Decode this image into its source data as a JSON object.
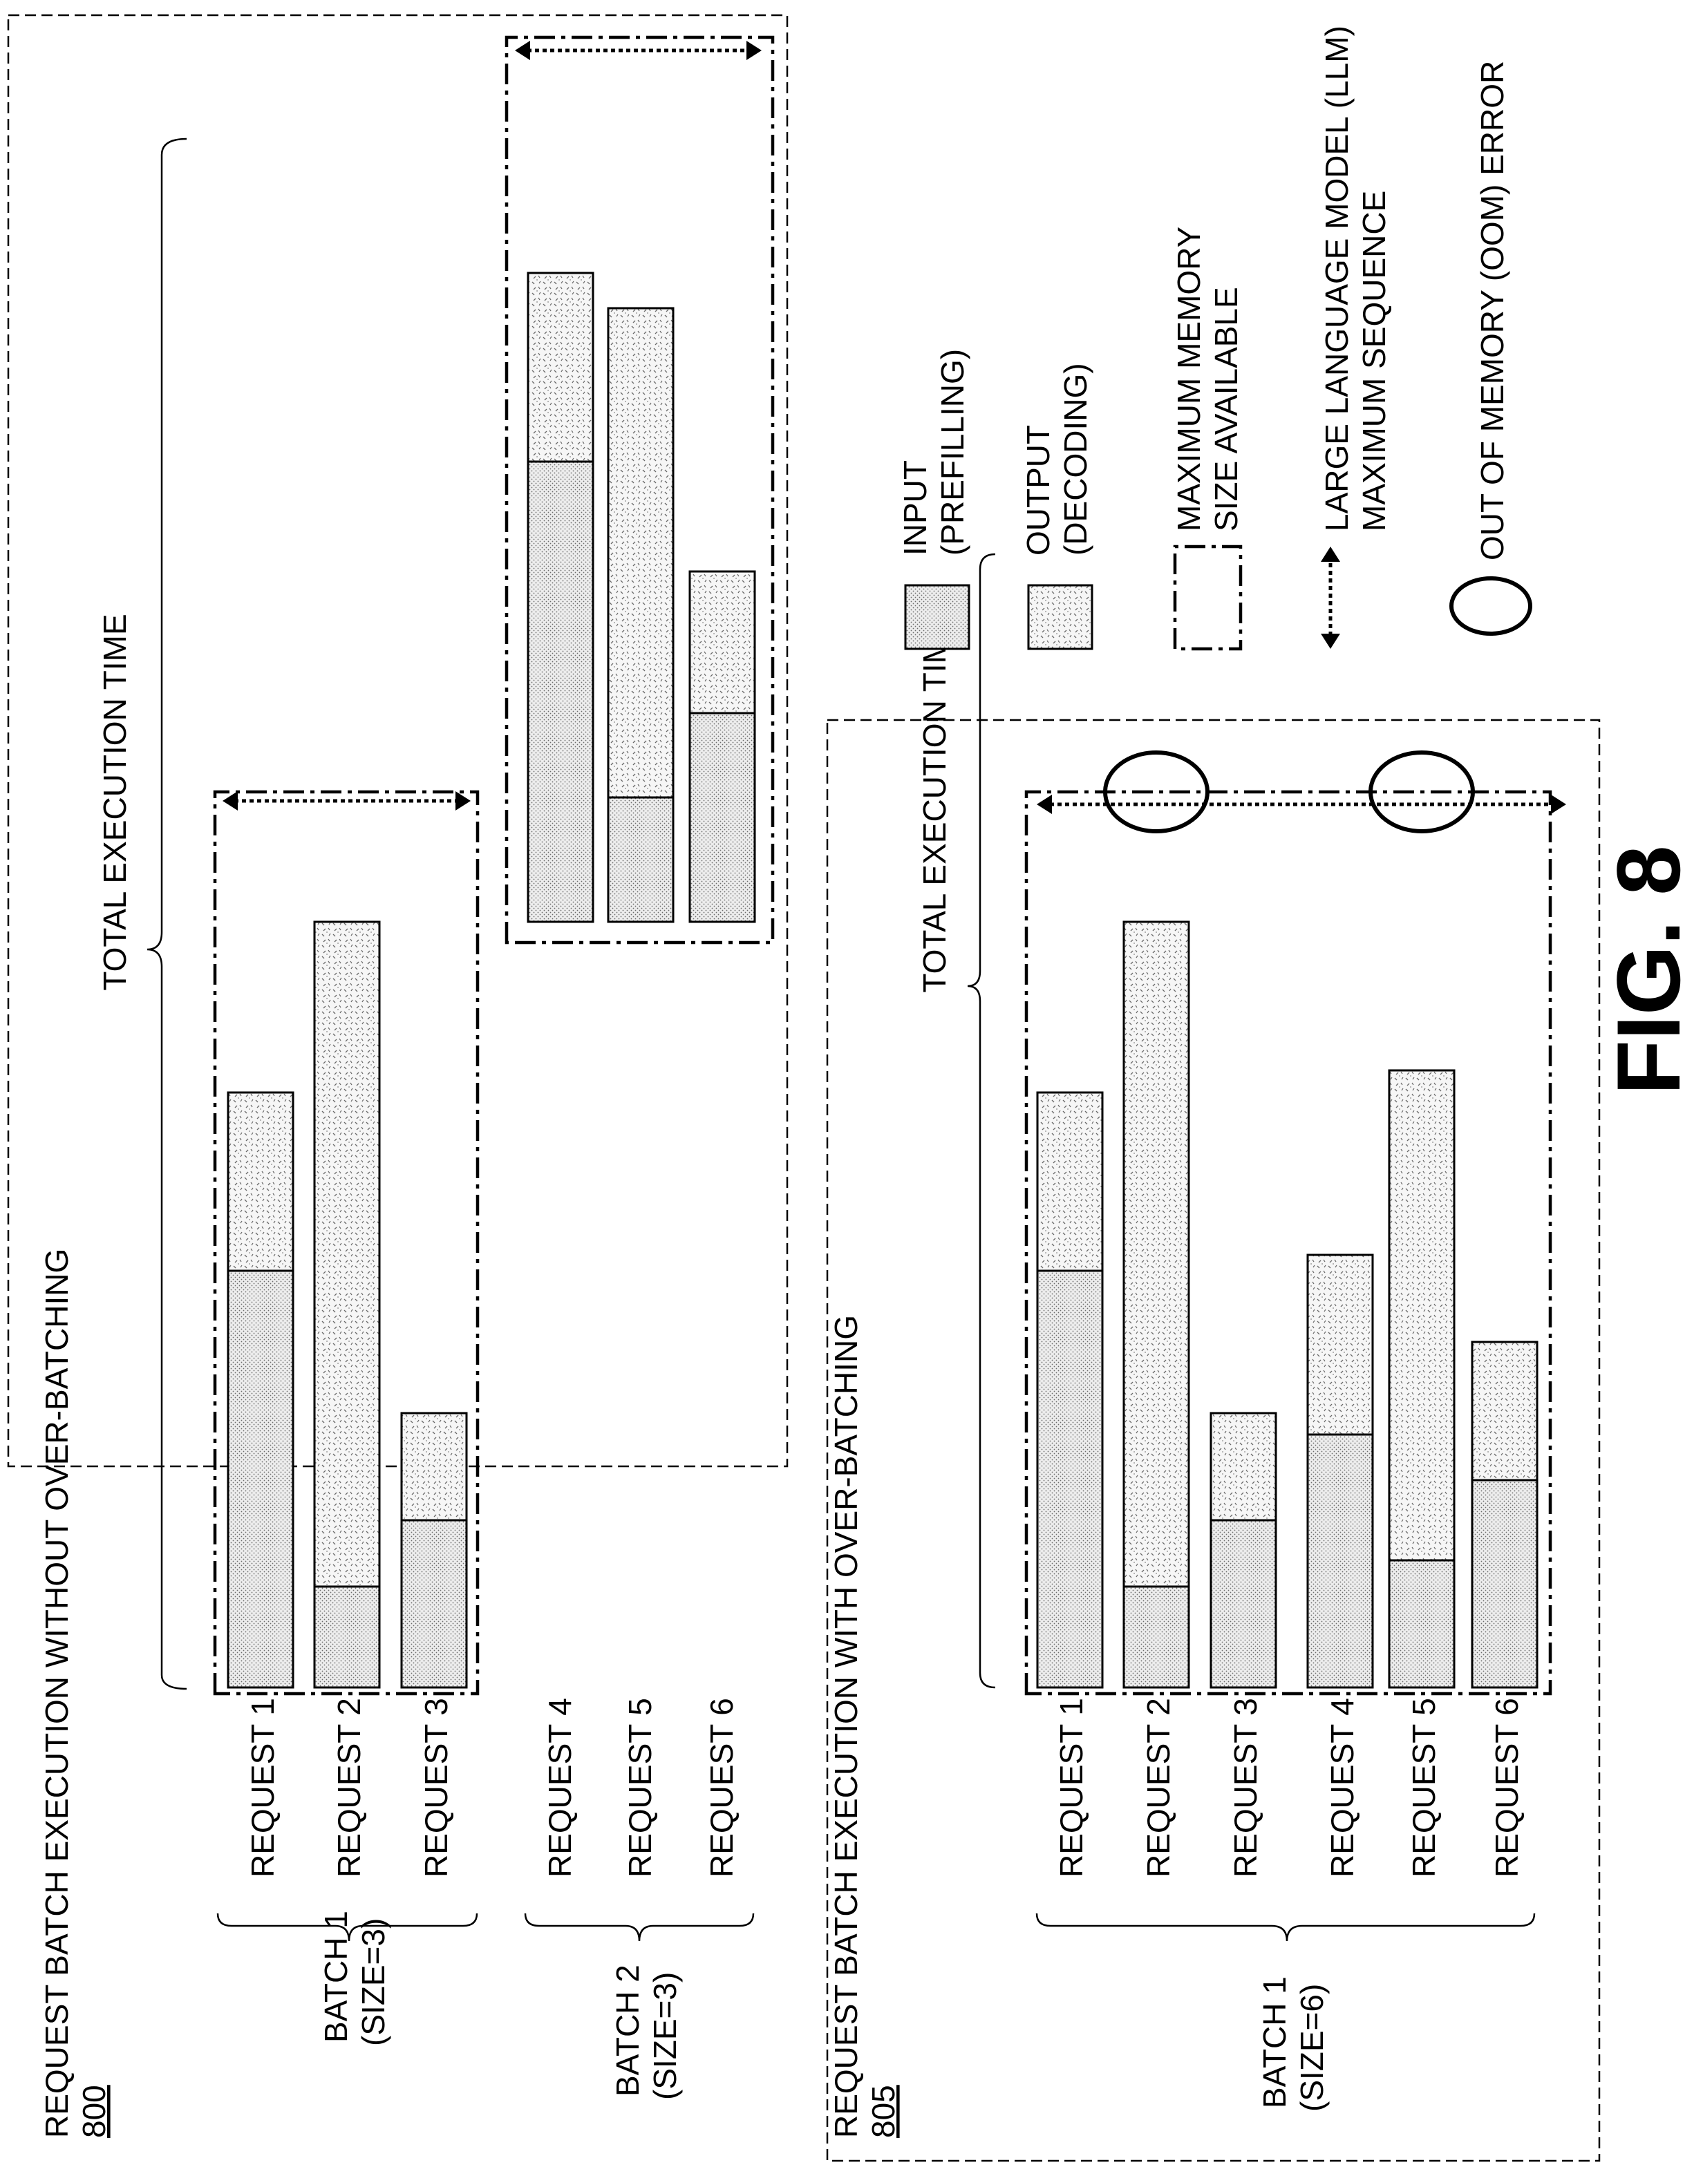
{
  "figure_label": "FIG. 8",
  "panel_top": {
    "title": "REQUEST BATCH EXECUTION WITHOUT OVER-BATCHING",
    "ref": "800",
    "total_label": "TOTAL EXECUTION TIME",
    "batches": [
      {
        "label_line1": "BATCH 1",
        "label_line2": "(SIZE=3)",
        "requests": [
          "REQUEST 1",
          "REQUEST 2",
          "REQUEST 3"
        ]
      },
      {
        "label_line1": "BATCH 2",
        "label_line2": "(SIZE=3)",
        "requests": [
          "REQUEST 4",
          "REQUEST 5",
          "REQUEST 6"
        ]
      }
    ]
  },
  "panel_bottom": {
    "title": "REQUEST BATCH EXECUTION WITH OVER-BATCHING",
    "ref": "805",
    "total_label": "TOTAL EXECUTION TIME",
    "batches": [
      {
        "label_line1": "BATCH 1",
        "label_line2": "(SIZE=6)",
        "requests": [
          "REQUEST 1",
          "REQUEST 2",
          "REQUEST 3",
          "REQUEST 4",
          "REQUEST 5",
          "REQUEST 6"
        ]
      }
    ]
  },
  "legend": {
    "input_line1": "INPUT",
    "input_line2": "(PREFILLING)",
    "output_line1": "OUTPUT",
    "output_line2": "(DECODING)",
    "memory_line1": "MAXIMUM MEMORY",
    "memory_line2": "SIZE AVAILABLE",
    "llm_line1": "LARGE LANGUAGE MODEL (LLM)",
    "llm_line2": "MAXIMUM SEQUENCE",
    "oom": "OUT OF MEMORY (OOM) ERROR"
  }
}
